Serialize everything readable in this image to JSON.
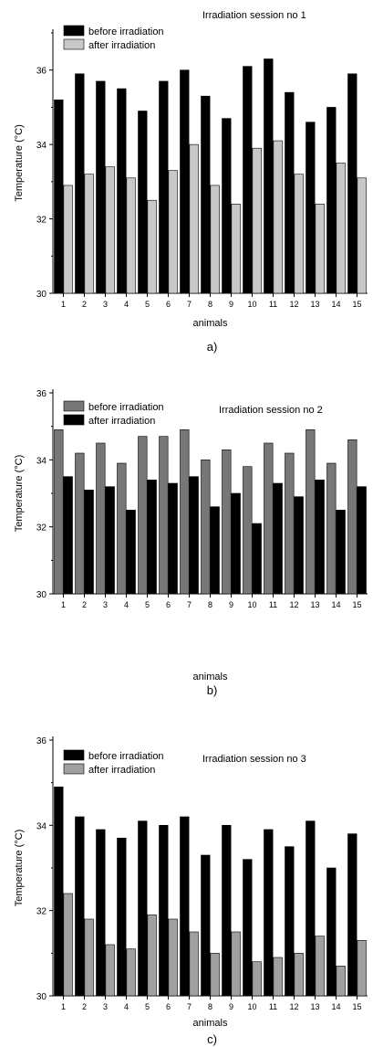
{
  "chart_data": [
    {
      "type": "bar",
      "title": "Irradiation session no 1",
      "xlabel": "animals",
      "ylabel": "Temperature (°C)",
      "caption": "a)",
      "categories": [
        "1",
        "2",
        "3",
        "4",
        "5",
        "6",
        "7",
        "8",
        "9",
        "10",
        "11",
        "12",
        "13",
        "14",
        "15"
      ],
      "ylim": [
        30,
        37
      ],
      "yticks": [
        30,
        32,
        34,
        36
      ],
      "series": [
        {
          "name": "before irradiation",
          "color": "#000000",
          "values": [
            35.2,
            35.9,
            35.7,
            35.5,
            34.9,
            35.7,
            36.0,
            35.3,
            34.7,
            36.1,
            36.3,
            35.4,
            34.6,
            35.0,
            35.9
          ]
        },
        {
          "name": "after irradiation",
          "color": "#c8c8c8",
          "values": [
            32.9,
            33.2,
            33.4,
            33.1,
            32.5,
            33.3,
            34.0,
            32.9,
            32.4,
            33.9,
            34.1,
            33.2,
            32.4,
            33.5,
            33.1
          ]
        }
      ],
      "legend_position": "top-left"
    },
    {
      "type": "bar",
      "title": "Irradiation session no 2",
      "xlabel": "animals",
      "ylabel": "Temperature (°C)",
      "caption": "b)",
      "categories": [
        "1",
        "2",
        "3",
        "4",
        "5",
        "6",
        "7",
        "8",
        "9",
        "10",
        "11",
        "12",
        "13",
        "14",
        "15"
      ],
      "ylim": [
        30,
        36
      ],
      "yticks": [
        30,
        32,
        34,
        36
      ],
      "series": [
        {
          "name": "before irradiation",
          "color": "#777777",
          "values": [
            34.9,
            34.2,
            34.5,
            33.9,
            34.7,
            34.7,
            34.9,
            34.0,
            34.3,
            33.8,
            34.5,
            34.2,
            34.9,
            33.9,
            34.6
          ]
        },
        {
          "name": "after irradiation",
          "color": "#000000",
          "values": [
            33.5,
            33.1,
            33.2,
            32.5,
            33.4,
            33.3,
            33.5,
            32.6,
            33.0,
            32.1,
            33.3,
            32.9,
            33.4,
            32.5,
            33.2
          ]
        }
      ],
      "legend_position": "top-left"
    },
    {
      "type": "bar",
      "title": "Irradiation session no 3",
      "xlabel": "animals",
      "ylabel": "Temperature (°C)",
      "caption": "c)",
      "categories": [
        "1",
        "2",
        "3",
        "4",
        "5",
        "6",
        "7",
        "8",
        "9",
        "10",
        "11",
        "12",
        "13",
        "14",
        "15"
      ],
      "ylim": [
        30,
        36
      ],
      "yticks": [
        30,
        32,
        34,
        36
      ],
      "series": [
        {
          "name": "before irradiation",
          "color": "#000000",
          "values": [
            34.9,
            34.2,
            33.9,
            33.7,
            34.1,
            34.0,
            34.2,
            33.3,
            34.0,
            33.2,
            33.9,
            33.5,
            34.1,
            33.0,
            33.8
          ]
        },
        {
          "name": "after irradiation",
          "color": "#a0a0a0",
          "values": [
            32.4,
            31.8,
            31.2,
            31.1,
            31.9,
            31.8,
            31.5,
            31.0,
            31.5,
            30.8,
            30.9,
            31.0,
            31.4,
            30.7,
            31.3
          ]
        }
      ],
      "legend_position": "top-left"
    }
  ]
}
